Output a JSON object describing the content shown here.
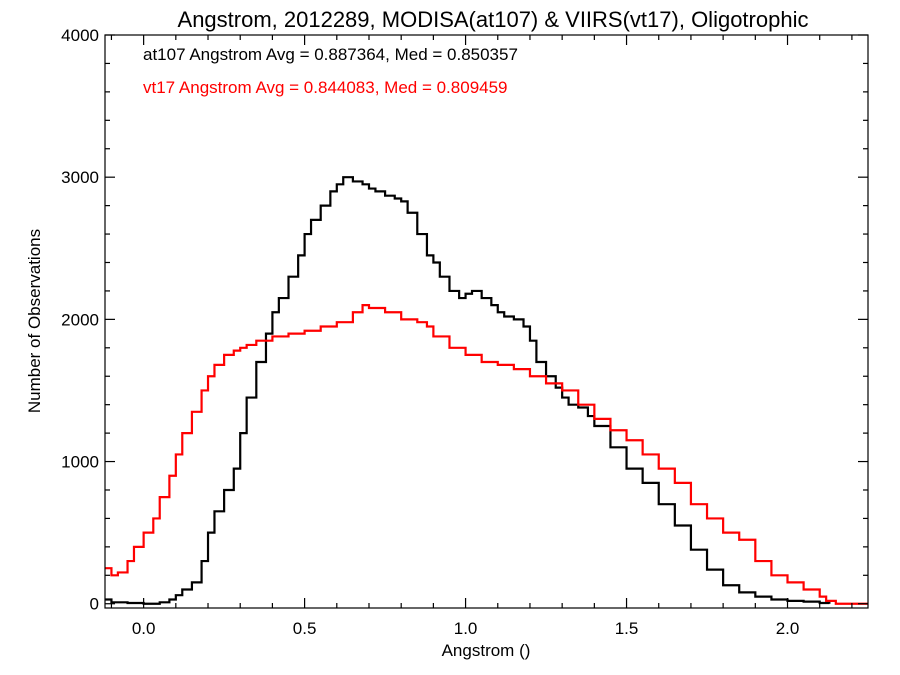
{
  "chart_data": {
    "type": "line",
    "title": "Angstrom, 2012289, MODISA(at107) & VIIRS(vt17), Oligotrophic",
    "xlabel": "Angstrom ()",
    "ylabel": "Number of Observations",
    "xlim": [
      -0.12,
      2.25
    ],
    "ylim": [
      -30,
      4000
    ],
    "x_ticks": [
      0.0,
      0.5,
      1.0,
      1.5,
      2.0
    ],
    "x_tick_labels": [
      "0.0",
      "0.5",
      "1.0",
      "1.5",
      "2.0"
    ],
    "y_ticks": [
      0,
      1000,
      2000,
      3000,
      4000
    ],
    "y_tick_labels": [
      "0",
      "1000",
      "2000",
      "3000",
      "4000"
    ],
    "grid": false,
    "step": true,
    "annotations": [
      {
        "text": "at107 Angstrom Avg = 0.887364, Med = 0.850357",
        "color": "#000000"
      },
      {
        "text": "vt17 Angstrom Avg = 0.844083, Med = 0.809459",
        "color": "#ff0000"
      }
    ],
    "series": [
      {
        "color": "#000000",
        "x": [
          -0.12,
          -0.1,
          -0.05,
          0.0,
          0.05,
          0.08,
          0.1,
          0.12,
          0.15,
          0.18,
          0.2,
          0.22,
          0.25,
          0.28,
          0.3,
          0.32,
          0.35,
          0.38,
          0.4,
          0.42,
          0.45,
          0.48,
          0.5,
          0.52,
          0.55,
          0.58,
          0.6,
          0.62,
          0.65,
          0.68,
          0.7,
          0.72,
          0.75,
          0.78,
          0.8,
          0.82,
          0.85,
          0.88,
          0.9,
          0.92,
          0.95,
          0.98,
          1.0,
          1.02,
          1.05,
          1.08,
          1.1,
          1.12,
          1.15,
          1.18,
          1.2,
          1.22,
          1.25,
          1.28,
          1.3,
          1.32,
          1.35,
          1.38,
          1.4,
          1.45,
          1.5,
          1.55,
          1.6,
          1.65,
          1.7,
          1.75,
          1.8,
          1.85,
          1.9,
          1.95,
          2.0,
          2.05,
          2.1,
          2.13
        ],
        "values": [
          30,
          10,
          5,
          0,
          10,
          30,
          60,
          100,
          150,
          300,
          500,
          650,
          800,
          950,
          1200,
          1450,
          1700,
          1900,
          2050,
          2150,
          2300,
          2450,
          2600,
          2700,
          2800,
          2900,
          2950,
          3000,
          2970,
          2950,
          2920,
          2900,
          2870,
          2850,
          2830,
          2750,
          2600,
          2450,
          2400,
          2300,
          2200,
          2150,
          2180,
          2200,
          2150,
          2100,
          2050,
          2020,
          2000,
          1950,
          1850,
          1700,
          1600,
          1520,
          1450,
          1400,
          1380,
          1320,
          1250,
          1100,
          950,
          850,
          700,
          550,
          380,
          240,
          130,
          80,
          50,
          30,
          20,
          15,
          5,
          0
        ]
      },
      {
        "color": "#ff0000",
        "x": [
          -0.12,
          -0.1,
          -0.08,
          -0.05,
          -0.03,
          0.0,
          0.03,
          0.05,
          0.08,
          0.1,
          0.12,
          0.15,
          0.18,
          0.2,
          0.22,
          0.25,
          0.28,
          0.3,
          0.32,
          0.35,
          0.4,
          0.45,
          0.5,
          0.55,
          0.6,
          0.65,
          0.68,
          0.7,
          0.75,
          0.8,
          0.85,
          0.88,
          0.9,
          0.95,
          1.0,
          1.05,
          1.1,
          1.15,
          1.2,
          1.25,
          1.3,
          1.35,
          1.4,
          1.45,
          1.5,
          1.55,
          1.6,
          1.65,
          1.7,
          1.75,
          1.8,
          1.85,
          1.9,
          1.95,
          2.0,
          2.05,
          2.1,
          2.12,
          2.15,
          2.25
        ],
        "values": [
          250,
          200,
          220,
          300,
          400,
          500,
          600,
          750,
          900,
          1050,
          1200,
          1350,
          1500,
          1600,
          1680,
          1750,
          1780,
          1800,
          1820,
          1850,
          1880,
          1900,
          1920,
          1950,
          1980,
          2050,
          2100,
          2080,
          2050,
          2000,
          1980,
          1950,
          1880,
          1800,
          1750,
          1700,
          1680,
          1650,
          1600,
          1550,
          1500,
          1400,
          1300,
          1220,
          1150,
          1050,
          950,
          850,
          700,
          600,
          500,
          450,
          300,
          200,
          150,
          100,
          50,
          20,
          0,
          0
        ]
      }
    ]
  }
}
